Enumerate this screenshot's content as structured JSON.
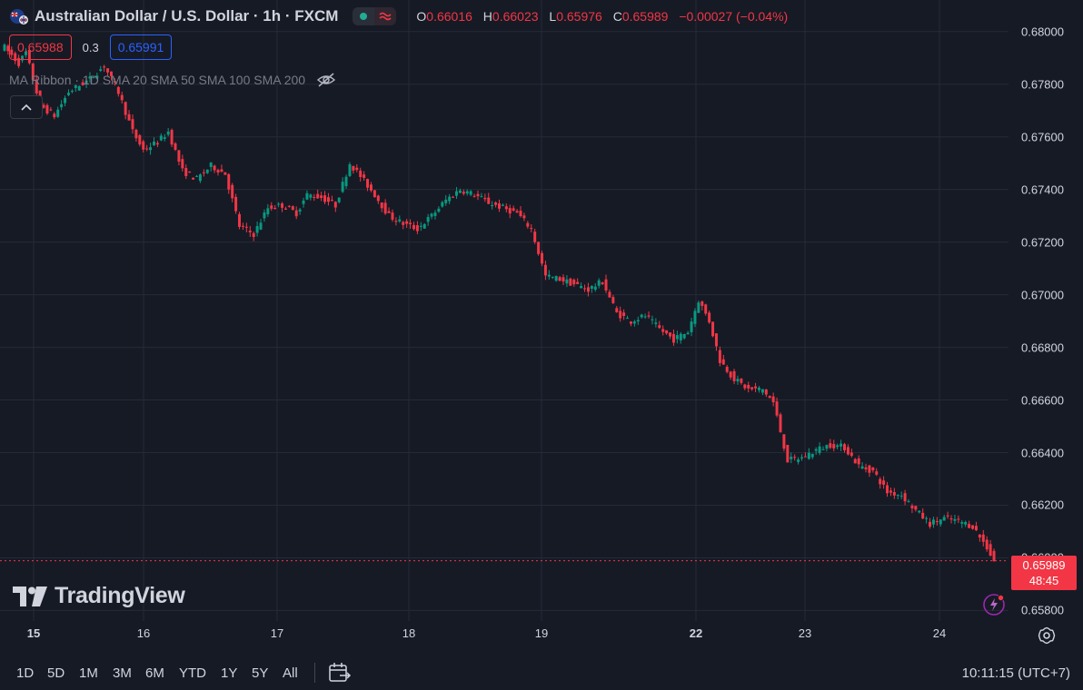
{
  "header": {
    "symbol_title": "Australian Dollar / U.S. Dollar · 1h · FXCM",
    "ohlc": {
      "o_label": "O",
      "o": "0.66016",
      "h_label": "H",
      "h": "0.66023",
      "l_label": "L",
      "l": "0.65976",
      "c_label": "C",
      "c": "0.65989",
      "change": "−0.00027 (−0.04%)"
    }
  },
  "trade": {
    "sell": "0.65988",
    "spread": "0.3",
    "buy": "0.65991"
  },
  "indicator": {
    "label": "MA Ribbon · 1D SMA 20 SMA 50 SMA 100 SMA 200"
  },
  "logo_text": "TradingView",
  "last_price": {
    "value": "0.65989",
    "countdown": "48:45"
  },
  "range_buttons": [
    "1D",
    "5D",
    "1M",
    "3M",
    "6M",
    "YTD",
    "1Y",
    "5Y",
    "All"
  ],
  "clock": "10:11:15 (UTC+7)",
  "colors": {
    "up": "#089981",
    "down": "#f23645",
    "background": "#161a25",
    "grid": "#262a36"
  },
  "icons": {
    "flag": "australia-flag-icon",
    "eye": "eye-off-icon",
    "settings": "gear-icon",
    "calendar": "calendar-range-icon",
    "bolt": "lightning-icon"
  },
  "chart_data": {
    "type": "candlestick",
    "title": "Australian Dollar / U.S. Dollar · 1h · FXCM",
    "ylim": [
      0.6576,
      0.6812
    ],
    "y_ticks": [
      "0.68000",
      "0.67800",
      "0.67600",
      "0.67400",
      "0.67200",
      "0.67000",
      "0.66800",
      "0.66600",
      "0.66400",
      "0.66200",
      "0.66000",
      "0.65800"
    ],
    "x_ticks": [
      {
        "label": "15",
        "bold": true
      },
      {
        "label": "16",
        "bold": false
      },
      {
        "label": "17",
        "bold": false
      },
      {
        "label": "18",
        "bold": false
      },
      {
        "label": "19",
        "bold": false
      },
      {
        "label": "22",
        "bold": true
      },
      {
        "label": "23",
        "bold": false
      },
      {
        "label": "24",
        "bold": false
      }
    ],
    "last_price": 0.65989,
    "grid": true,
    "path": [
      [
        0,
        0.6794
      ],
      [
        4,
        0.6788
      ],
      [
        6,
        0.6792
      ],
      [
        10,
        0.6772
      ],
      [
        14,
        0.6768
      ],
      [
        18,
        0.6777
      ],
      [
        24,
        0.6782
      ],
      [
        28,
        0.6787
      ],
      [
        32,
        0.6777
      ],
      [
        36,
        0.6762
      ],
      [
        39,
        0.6755
      ],
      [
        43,
        0.6758
      ],
      [
        46,
        0.6762
      ],
      [
        50,
        0.6747
      ],
      [
        54,
        0.6744
      ],
      [
        58,
        0.6749
      ],
      [
        62,
        0.6746
      ],
      [
        66,
        0.6726
      ],
      [
        70,
        0.6723
      ],
      [
        74,
        0.6733
      ],
      [
        78,
        0.6734
      ],
      [
        82,
        0.6731
      ],
      [
        85,
        0.6738
      ],
      [
        89,
        0.6737
      ],
      [
        93,
        0.6734
      ],
      [
        97,
        0.675
      ],
      [
        100,
        0.6745
      ],
      [
        104,
        0.6738
      ],
      [
        108,
        0.673
      ],
      [
        112,
        0.6727
      ],
      [
        116,
        0.6725
      ],
      [
        120,
        0.673
      ],
      [
        124,
        0.6736
      ],
      [
        128,
        0.674
      ],
      [
        132,
        0.6738
      ],
      [
        136,
        0.6735
      ],
      [
        140,
        0.6733
      ],
      [
        144,
        0.6731
      ],
      [
        148,
        0.6725
      ],
      [
        152,
        0.6707
      ],
      [
        156,
        0.6706
      ],
      [
        160,
        0.6704
      ],
      [
        164,
        0.6702
      ],
      [
        168,
        0.6705
      ],
      [
        172,
        0.6693
      ],
      [
        176,
        0.669
      ],
      [
        180,
        0.6692
      ],
      [
        184,
        0.6687
      ],
      [
        188,
        0.6683
      ],
      [
        192,
        0.6686
      ],
      [
        195,
        0.6698
      ],
      [
        198,
        0.669
      ],
      [
        201,
        0.6675
      ],
      [
        205,
        0.6668
      ],
      [
        209,
        0.6664
      ],
      [
        213,
        0.6664
      ],
      [
        216,
        0.6659
      ],
      [
        220,
        0.6637
      ],
      [
        224,
        0.6638
      ],
      [
        228,
        0.6641
      ],
      [
        232,
        0.6643
      ],
      [
        236,
        0.6642
      ],
      [
        240,
        0.6635
      ],
      [
        244,
        0.6633
      ],
      [
        248,
        0.6625
      ],
      [
        252,
        0.6624
      ],
      [
        256,
        0.6618
      ],
      [
        260,
        0.6613
      ],
      [
        264,
        0.6615
      ],
      [
        268,
        0.6614
      ],
      [
        272,
        0.6612
      ],
      [
        276,
        0.6604
      ],
      [
        278,
        0.65989
      ]
    ]
  }
}
